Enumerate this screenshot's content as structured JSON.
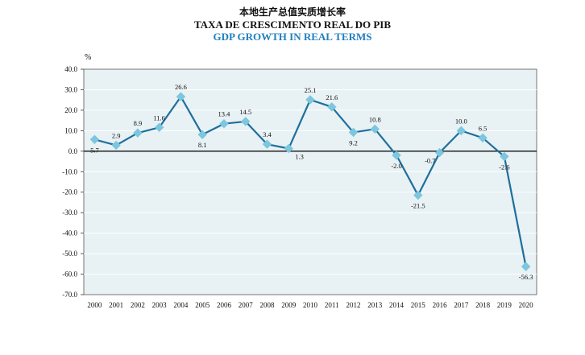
{
  "title_zh": "本地生产总值实质增长率",
  "title_pt": "TAXA DE CRESCIMENTO REAL DO PIB",
  "title_en": "GDP GROWTH IN REAL TERMS",
  "colors": {
    "line": "#1e6f9c",
    "marker": "#7cc6de",
    "plot_bg": "#e8f1f4",
    "grid": "#ffffff",
    "title_en": "#1f7fbf"
  },
  "chart_data": {
    "type": "line",
    "title": "GDP GROWTH IN REAL TERMS",
    "ylabel": "%",
    "xlabel": "",
    "ylim": [
      -70,
      40
    ],
    "yticks": [
      "40.0",
      "30.0",
      "20.0",
      "10.0",
      "0.0",
      "-10.0",
      "-20.0",
      "-30.0",
      "-40.0",
      "-50.0",
      "-60.0",
      "-70.0"
    ],
    "ytick_values": [
      40,
      30,
      20,
      10,
      0,
      -10,
      -20,
      -30,
      -40,
      -50,
      -60,
      -70
    ],
    "categories": [
      "2000",
      "2001",
      "2002",
      "2003",
      "2004",
      "2005",
      "2006",
      "2007",
      "2008",
      "2009",
      "2010",
      "2011",
      "2012",
      "2013",
      "2014",
      "2015",
      "2016",
      "2017",
      "2018",
      "2019",
      "2020"
    ],
    "values": [
      5.7,
      2.9,
      8.9,
      11.6,
      26.6,
      8.1,
      13.4,
      14.5,
      3.4,
      1.3,
      25.1,
      21.6,
      9.2,
      10.8,
      -2.0,
      -21.5,
      -0.7,
      10.0,
      6.5,
      -2.6,
      -56.3
    ],
    "data_labels": [
      "5.7",
      "2.9",
      "8.9",
      "11.6",
      "26.6",
      "8.1",
      "13.4",
      "14.5",
      "3.4",
      "1.3",
      "25.1",
      "21.6",
      "9.2",
      "10.8",
      "-2.0",
      "-21.5",
      "-0.7",
      "10.0",
      "6.5",
      "-2.6",
      "-56.3"
    ],
    "label_positions": [
      "below",
      "above",
      "above",
      "above",
      "above",
      "below",
      "above",
      "above",
      "above",
      "right",
      "above",
      "above",
      "below",
      "above",
      "below",
      "below",
      "left",
      "above",
      "above",
      "below",
      "below"
    ],
    "grid": true,
    "legend": "none"
  }
}
